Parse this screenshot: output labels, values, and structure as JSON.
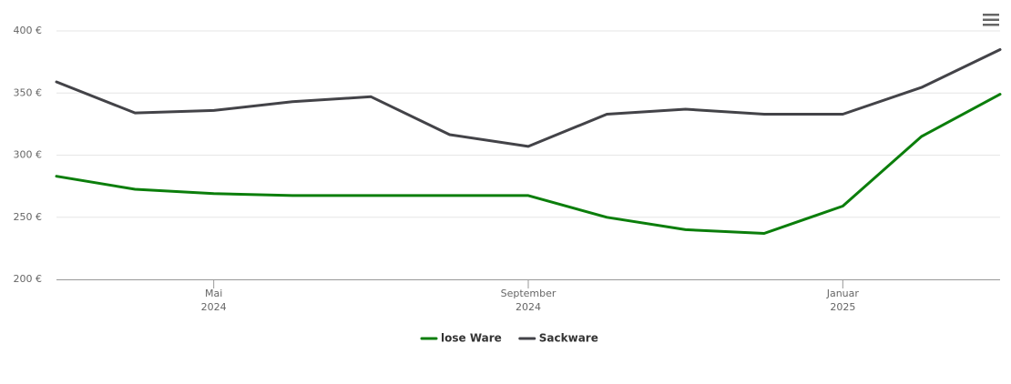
{
  "chart_data": {
    "type": "line",
    "x": [
      "2024-03",
      "2024-04",
      "2024-05",
      "2024-06",
      "2024-07",
      "2024-08",
      "2024-09",
      "2024-10",
      "2024-11",
      "2024-12",
      "2025-01",
      "2025-02",
      "2025-03"
    ],
    "series": [
      {
        "name": "lose Ware",
        "color": "#0b7e0b",
        "values": [
          283,
          272.5,
          269,
          267.5,
          267.5,
          267.5,
          267.5,
          250,
          240,
          237,
          259,
          315,
          349
        ]
      },
      {
        "name": "Sackware",
        "color": "#434348",
        "values": [
          359,
          334,
          336,
          343,
          347,
          316.5,
          307,
          333,
          337,
          333,
          333,
          354.5,
          385
        ]
      }
    ],
    "xlim": [
      "2024-03",
      "2025-03"
    ],
    "xticks": [
      {
        "value": "2024-05",
        "label": [
          "Mai",
          "2024"
        ]
      },
      {
        "value": "2024-09",
        "label": [
          "September",
          "2024"
        ]
      },
      {
        "value": "2025-01",
        "label": [
          "Januar",
          "2025"
        ]
      }
    ],
    "ylim": [
      200,
      400
    ],
    "yticks": [
      {
        "value": 200,
        "label": "200 €"
      },
      {
        "value": 250,
        "label": "250 €"
      },
      {
        "value": 300,
        "label": "300 €"
      },
      {
        "value": 350,
        "label": "350 €"
      },
      {
        "value": 400,
        "label": "400 €"
      }
    ],
    "grid": true,
    "legend": "bottom"
  }
}
